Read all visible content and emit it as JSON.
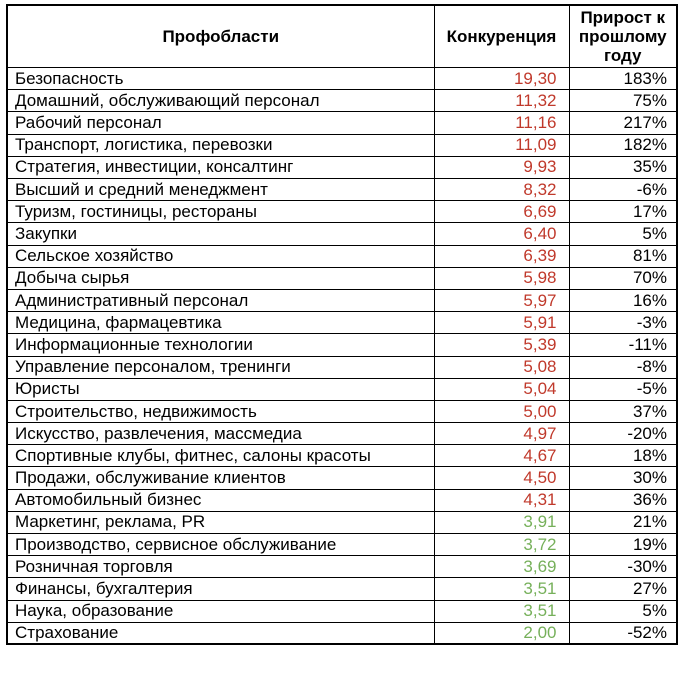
{
  "colors": {
    "competition_high_red": "#c0392b",
    "competition_low_green": "#76b05a",
    "grid_border": "#000000",
    "text": "#000000",
    "background": "#ffffff"
  },
  "chart_data": {
    "type": "table",
    "columns": [
      "Профобласти",
      "Конкуренция",
      "Прирост к прошлому году"
    ],
    "rows": [
      {
        "profession": "Безопасность",
        "competition": "19,30",
        "growth": "183%",
        "competition_color": "red"
      },
      {
        "profession": "Домашний, обслуживающий персонал",
        "competition": "11,32",
        "growth": "75%",
        "competition_color": "red"
      },
      {
        "profession": "Рабочий персонал",
        "competition": "11,16",
        "growth": "217%",
        "competition_color": "red"
      },
      {
        "profession": "Транспорт, логистика, перевозки",
        "competition": "11,09",
        "growth": "182%",
        "competition_color": "red"
      },
      {
        "profession": "Стратегия, инвестиции, консалтинг",
        "competition": "9,93",
        "growth": "35%",
        "competition_color": "red"
      },
      {
        "profession": "Высший и средний менеджмент",
        "competition": "8,32",
        "growth": "-6%",
        "competition_color": "red"
      },
      {
        "profession": "Туризм, гостиницы, рестораны",
        "competition": "6,69",
        "growth": "17%",
        "competition_color": "red"
      },
      {
        "profession": "Закупки",
        "competition": "6,40",
        "growth": "5%",
        "competition_color": "red"
      },
      {
        "profession": "Сельское хозяйство",
        "competition": "6,39",
        "growth": "81%",
        "competition_color": "red"
      },
      {
        "profession": "Добыча сырья",
        "competition": "5,98",
        "growth": "70%",
        "competition_color": "red"
      },
      {
        "profession": "Административный персонал",
        "competition": "5,97",
        "growth": "16%",
        "competition_color": "red"
      },
      {
        "profession": "Медицина, фармацевтика",
        "competition": "5,91",
        "growth": "-3%",
        "competition_color": "red"
      },
      {
        "profession": "Информационные технологии",
        "competition": "5,39",
        "growth": "-11%",
        "competition_color": "red"
      },
      {
        "profession": "Управление персоналом, тренинги",
        "competition": "5,08",
        "growth": "-8%",
        "competition_color": "red"
      },
      {
        "profession": "Юристы",
        "competition": "5,04",
        "growth": "-5%",
        "competition_color": "red"
      },
      {
        "profession": "Строительство, недвижимость",
        "competition": "5,00",
        "growth": "37%",
        "competition_color": "red"
      },
      {
        "profession": "Искусство, развлечения, массмедиа",
        "competition": "4,97",
        "growth": "-20%",
        "competition_color": "red"
      },
      {
        "profession": "Спортивные клубы, фитнес, салоны красоты",
        "competition": "4,67",
        "growth": "18%",
        "competition_color": "red"
      },
      {
        "profession": "Продажи, обслуживание клиентов",
        "competition": "4,50",
        "growth": "30%",
        "competition_color": "red"
      },
      {
        "profession": "Автомобильный бизнес",
        "competition": "4,31",
        "growth": "36%",
        "competition_color": "red"
      },
      {
        "profession": "Маркетинг, реклама, PR",
        "competition": "3,91",
        "growth": "21%",
        "competition_color": "green"
      },
      {
        "profession": "Производство, сервисное обслуживание",
        "competition": "3,72",
        "growth": "19%",
        "competition_color": "green"
      },
      {
        "profession": "Розничная торговля",
        "competition": "3,69",
        "growth": "-30%",
        "competition_color": "green"
      },
      {
        "profession": "Финансы, бухгалтерия",
        "competition": "3,51",
        "growth": "27%",
        "competition_color": "green"
      },
      {
        "profession": "Наука, образование",
        "competition": "3,51",
        "growth": "5%",
        "competition_color": "green"
      },
      {
        "profession": "Страхование",
        "competition": "2,00",
        "growth": "-52%",
        "competition_color": "green"
      }
    ]
  }
}
